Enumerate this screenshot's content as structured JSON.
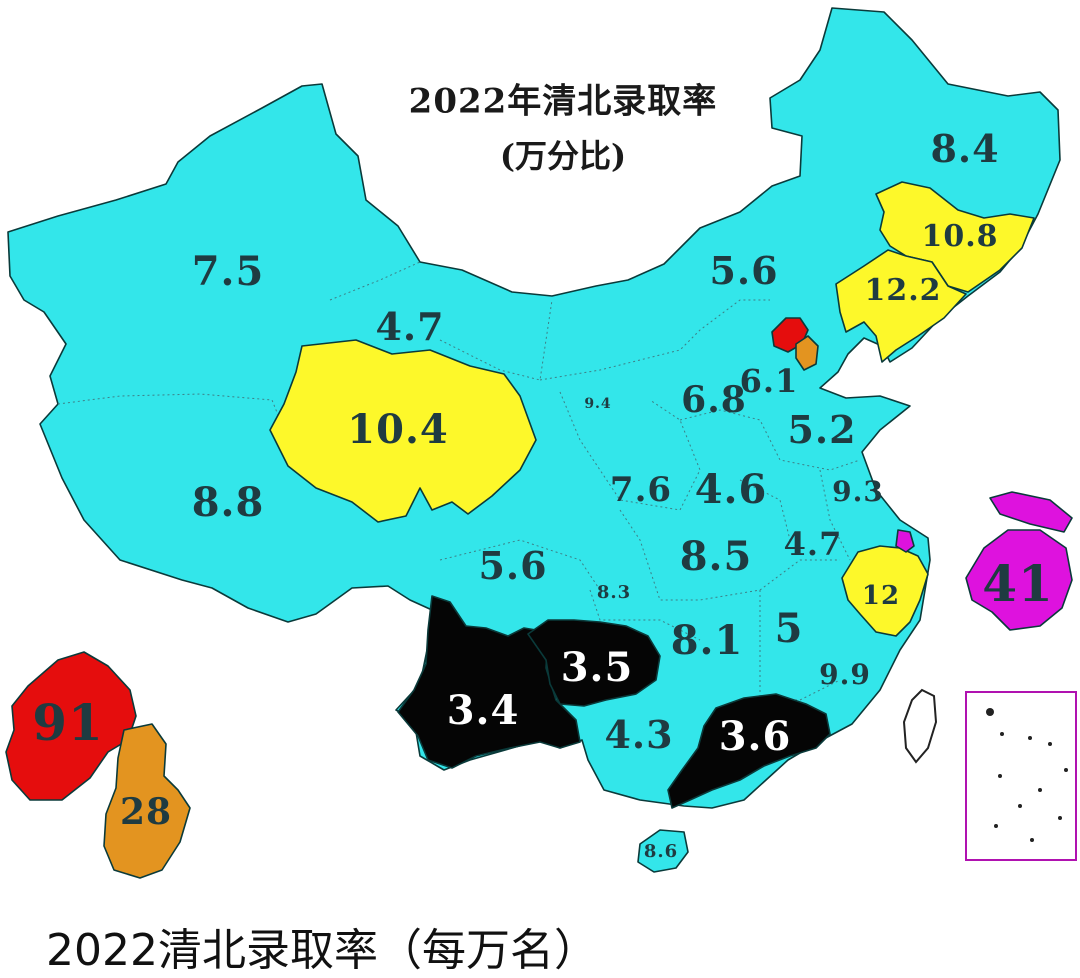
{
  "title": "2022年清北录取率",
  "subtitle": "(万分比)",
  "caption": "2022清北录取率（每万名）",
  "colors": {
    "default": "#33e6ea",
    "high_yellow": "#fdf82a",
    "low_black": "#050505",
    "beijing_red": "#e50d0d",
    "tianjin_orange": "#e39420",
    "shanghai_magenta": "#de12de",
    "border": "#0a3a3a"
  },
  "regions": [
    {
      "name": "heilongjiang",
      "value": "8.4"
    },
    {
      "name": "jilin",
      "value": "10.8"
    },
    {
      "name": "liaoning",
      "value": "12.2"
    },
    {
      "name": "inner-mongolia",
      "value": "5.6"
    },
    {
      "name": "xinjiang",
      "value": "7.5"
    },
    {
      "name": "gansu",
      "value": "4.7"
    },
    {
      "name": "qinghai",
      "value": "10.4"
    },
    {
      "name": "tibet",
      "value": "8.8"
    },
    {
      "name": "ningxia",
      "value": "9.4"
    },
    {
      "name": "shanxi",
      "value": "6.8"
    },
    {
      "name": "hebei",
      "value": "6.1"
    },
    {
      "name": "shandong",
      "value": "5.2"
    },
    {
      "name": "shaanxi",
      "value": "7.6"
    },
    {
      "name": "henan",
      "value": "4.6"
    },
    {
      "name": "jiangsu",
      "value": "9.3"
    },
    {
      "name": "sichuan",
      "value": "5.6"
    },
    {
      "name": "hubei",
      "value": "8.5"
    },
    {
      "name": "anhui",
      "value": "4.7"
    },
    {
      "name": "zhejiang",
      "value": "12"
    },
    {
      "name": "chongqing",
      "value": "8.3"
    },
    {
      "name": "guizhou",
      "value": "3.5"
    },
    {
      "name": "hunan",
      "value": "8.1"
    },
    {
      "name": "jiangxi",
      "value": "5"
    },
    {
      "name": "fujian",
      "value": "9.9"
    },
    {
      "name": "yunnan",
      "value": "3.4"
    },
    {
      "name": "guangxi",
      "value": "4.3"
    },
    {
      "name": "guangdong",
      "value": "3.6"
    },
    {
      "name": "hainan",
      "value": "8.6"
    },
    {
      "name": "shanghai",
      "value": "41"
    },
    {
      "name": "beijing",
      "value": "91"
    },
    {
      "name": "tianjin",
      "value": "28"
    }
  ]
}
